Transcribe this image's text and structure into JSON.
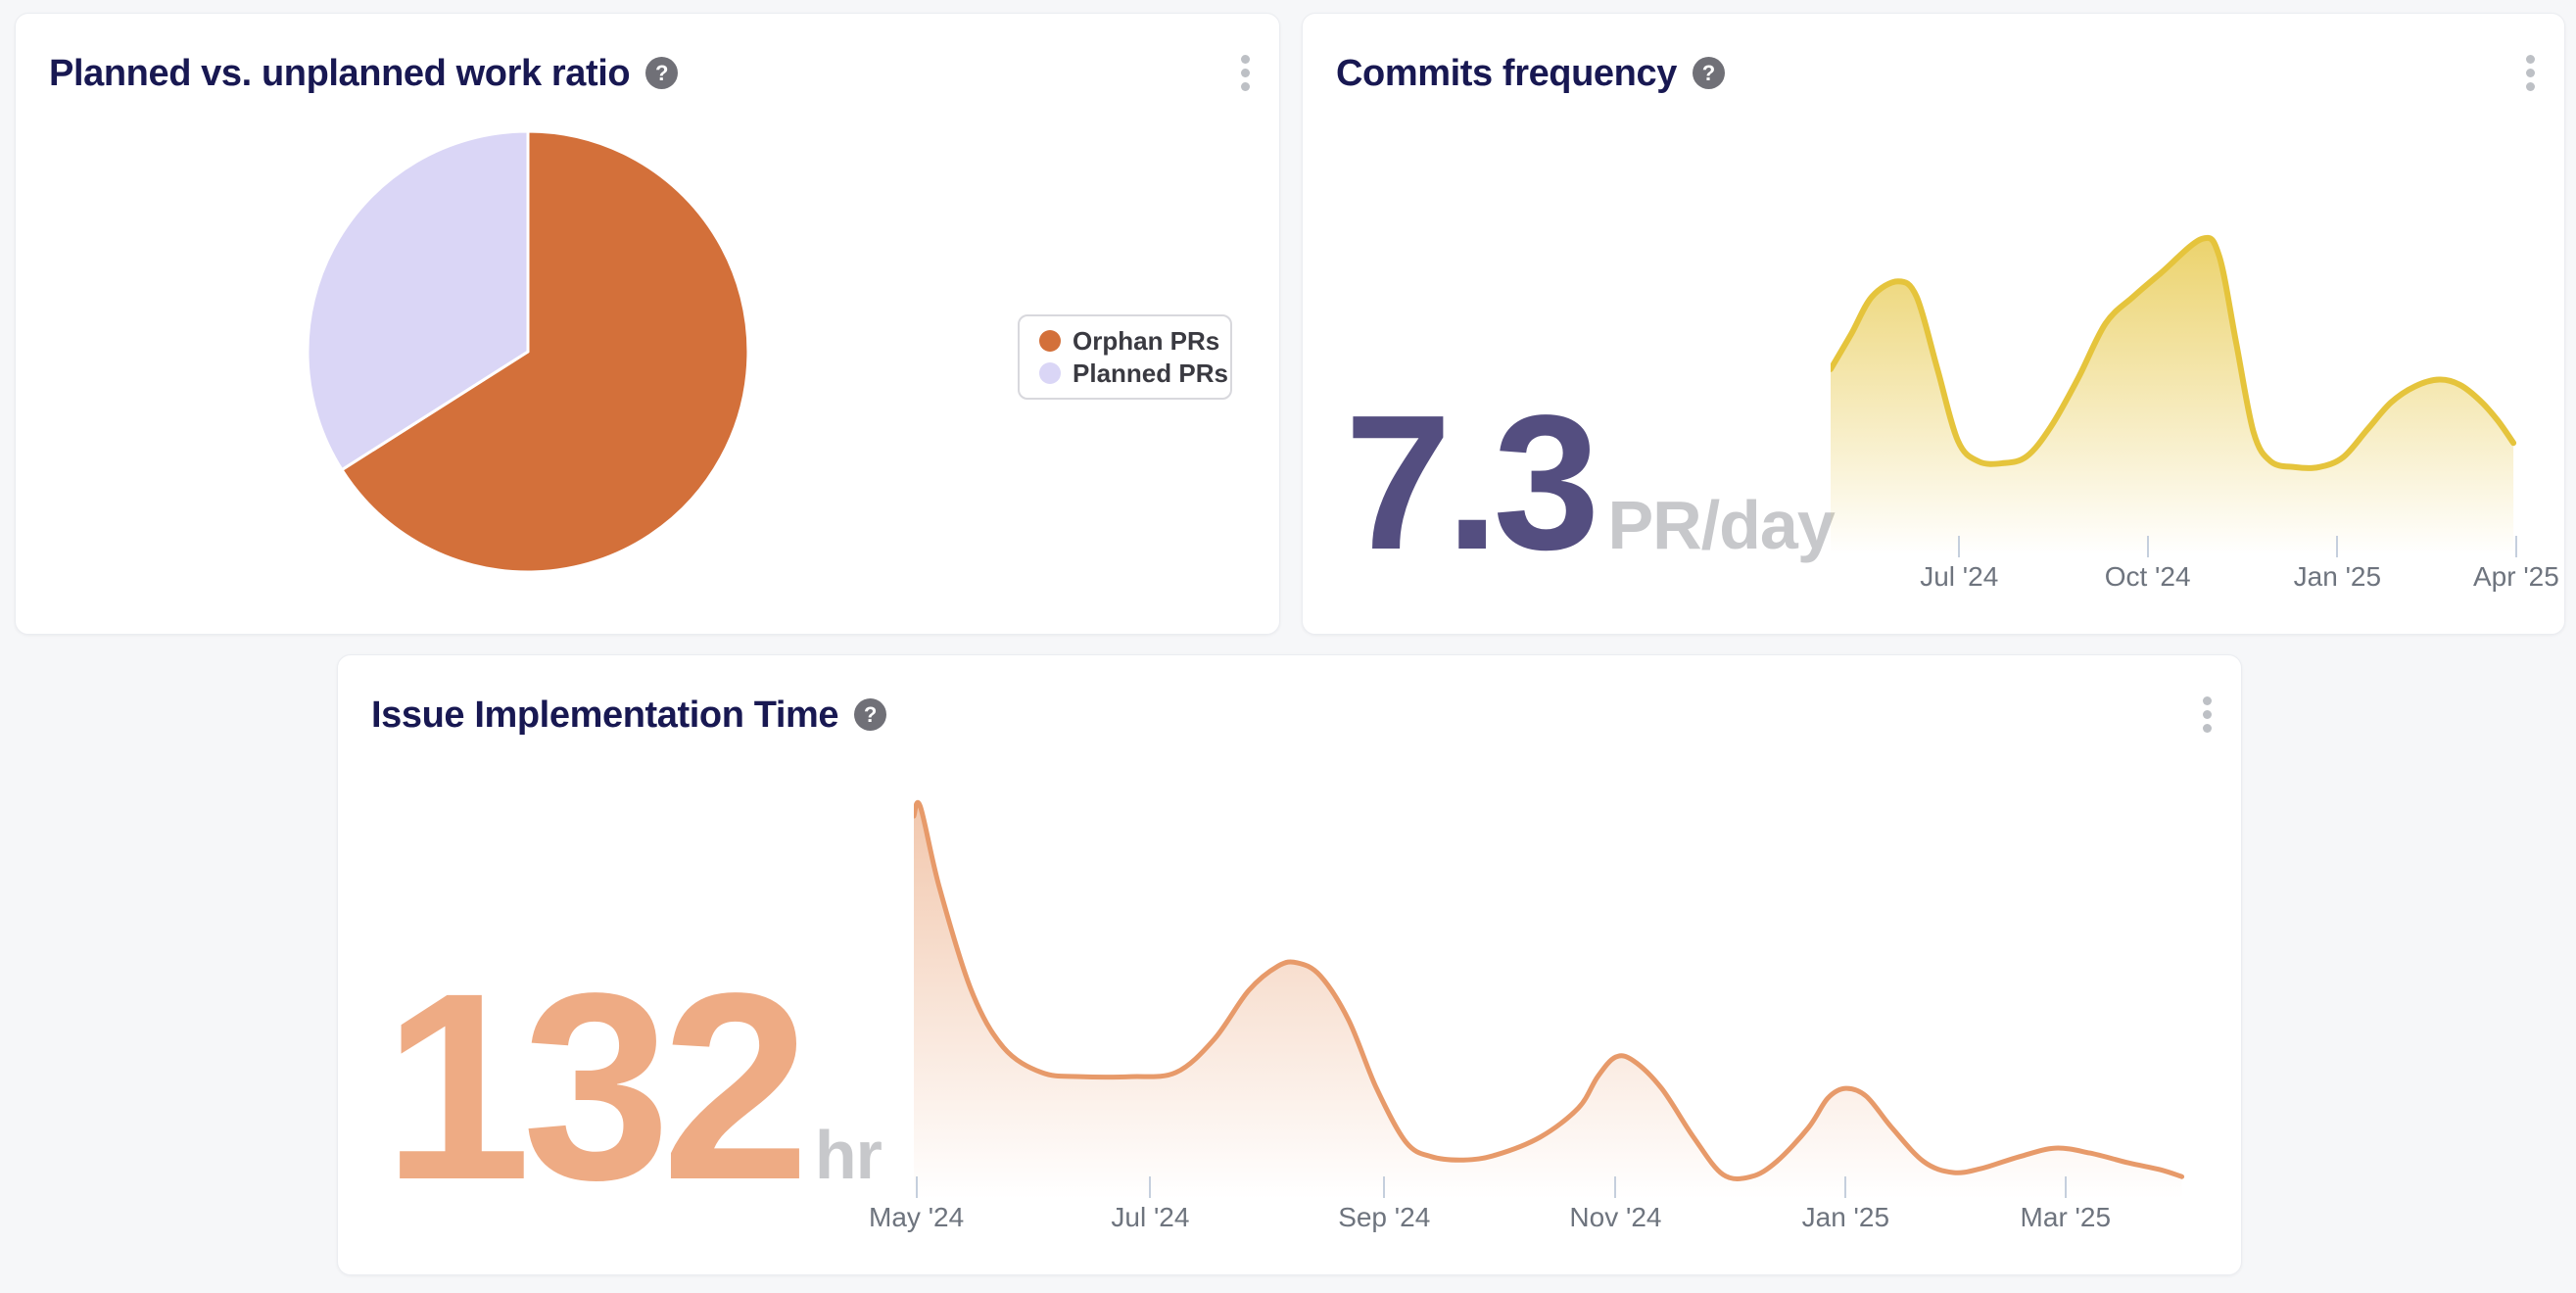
{
  "page": {
    "background": "#f6f7f9"
  },
  "icons": {
    "help_glyph": "?",
    "menu": "kebab-vertical-dots"
  },
  "cards": {
    "work_ratio": {
      "title": "Planned vs. unplanned work ratio",
      "chart_data": {
        "type": "pie",
        "start_angle_deg": 0,
        "direction": "clockwise",
        "legend_position": "right",
        "slices": [
          {
            "label": "Orphan PRs",
            "value_pct": 66,
            "color": "#d3703a"
          },
          {
            "label": "Planned PRs",
            "value_pct": 34,
            "color": "#dad6f6"
          }
        ]
      }
    },
    "commits_frequency": {
      "title": "Commits frequency",
      "metric": {
        "value": "7.3",
        "unit": "PR/day"
      },
      "chart_data": {
        "type": "area",
        "line_color": "#e5c43c",
        "fill_top_opacity": 0.75,
        "x_range": "May '24 - Apr '25",
        "y_axis": "none shown (sparkline; y normalized 0-1 of plot height)",
        "x_ticks": [
          {
            "label": "Jul '24",
            "pos": 0.187
          },
          {
            "label": "Oct '24",
            "pos": 0.461
          },
          {
            "label": "Jan '25",
            "pos": 0.737
          },
          {
            "label": "Apr '25",
            "pos": 0.997
          }
        ],
        "points": [
          [
            0.0,
            0.573
          ],
          [
            0.03,
            0.682
          ],
          [
            0.06,
            0.797
          ],
          [
            0.098,
            0.845
          ],
          [
            0.125,
            0.797
          ],
          [
            0.155,
            0.576
          ],
          [
            0.185,
            0.352
          ],
          [
            0.215,
            0.288
          ],
          [
            0.25,
            0.282
          ],
          [
            0.285,
            0.303
          ],
          [
            0.32,
            0.394
          ],
          [
            0.36,
            0.545
          ],
          [
            0.4,
            0.715
          ],
          [
            0.44,
            0.797
          ],
          [
            0.48,
            0.87
          ],
          [
            0.54,
            0.976
          ],
          [
            0.565,
            0.924
          ],
          [
            0.59,
            0.652
          ],
          [
            0.615,
            0.379
          ],
          [
            0.64,
            0.288
          ],
          [
            0.675,
            0.27
          ],
          [
            0.71,
            0.27
          ],
          [
            0.745,
            0.3
          ],
          [
            0.78,
            0.385
          ],
          [
            0.815,
            0.47
          ],
          [
            0.85,
            0.52
          ],
          [
            0.885,
            0.541
          ],
          [
            0.915,
            0.525
          ],
          [
            0.945,
            0.475
          ],
          [
            0.97,
            0.415
          ],
          [
            0.993,
            0.345
          ]
        ]
      }
    },
    "issue_implementation_time": {
      "title": "Issue Implementation Time",
      "metric": {
        "value": "132",
        "unit": "hr"
      },
      "chart_data": {
        "type": "area",
        "line_color": "#e79a6a",
        "fill_top_opacity": 0.55,
        "x_range": "May '24 - early Apr '25",
        "y_axis": "none shown (sparkline; y normalized 0-1 of plot height)",
        "x_ticks": [
          {
            "label": "May '24",
            "pos": 0.002
          },
          {
            "label": "Jul '24",
            "pos": 0.185
          },
          {
            "label": "Sep '24",
            "pos": 0.368
          },
          {
            "label": "Nov '24",
            "pos": 0.549
          },
          {
            "label": "Jan '25",
            "pos": 0.729
          },
          {
            "label": "Mar '25",
            "pos": 0.901
          }
        ],
        "points": [
          [
            0.0,
            0.942
          ],
          [
            0.005,
            0.966
          ],
          [
            0.02,
            0.766
          ],
          [
            0.045,
            0.513
          ],
          [
            0.07,
            0.373
          ],
          [
            0.1,
            0.311
          ],
          [
            0.13,
            0.301
          ],
          [
            0.17,
            0.301
          ],
          [
            0.205,
            0.311
          ],
          [
            0.235,
            0.393
          ],
          [
            0.262,
            0.513
          ],
          [
            0.285,
            0.573
          ],
          [
            0.3,
            0.581
          ],
          [
            0.318,
            0.549
          ],
          [
            0.34,
            0.441
          ],
          [
            0.362,
            0.272
          ],
          [
            0.385,
            0.14
          ],
          [
            0.405,
            0.104
          ],
          [
            0.43,
            0.096
          ],
          [
            0.455,
            0.108
          ],
          [
            0.49,
            0.152
          ],
          [
            0.52,
            0.224
          ],
          [
            0.535,
            0.301
          ],
          [
            0.549,
            0.349
          ],
          [
            0.563,
            0.34
          ],
          [
            0.585,
            0.272
          ],
          [
            0.61,
            0.152
          ],
          [
            0.633,
            0.06
          ],
          [
            0.655,
            0.055
          ],
          [
            0.675,
            0.092
          ],
          [
            0.7,
            0.176
          ],
          [
            0.715,
            0.248
          ],
          [
            0.729,
            0.272
          ],
          [
            0.745,
            0.253
          ],
          [
            0.765,
            0.176
          ],
          [
            0.79,
            0.092
          ],
          [
            0.813,
            0.065
          ],
          [
            0.835,
            0.075
          ],
          [
            0.865,
            0.104
          ],
          [
            0.893,
            0.125
          ],
          [
            0.92,
            0.113
          ],
          [
            0.95,
            0.089
          ],
          [
            0.975,
            0.072
          ],
          [
            0.992,
            0.055
          ]
        ]
      }
    }
  }
}
